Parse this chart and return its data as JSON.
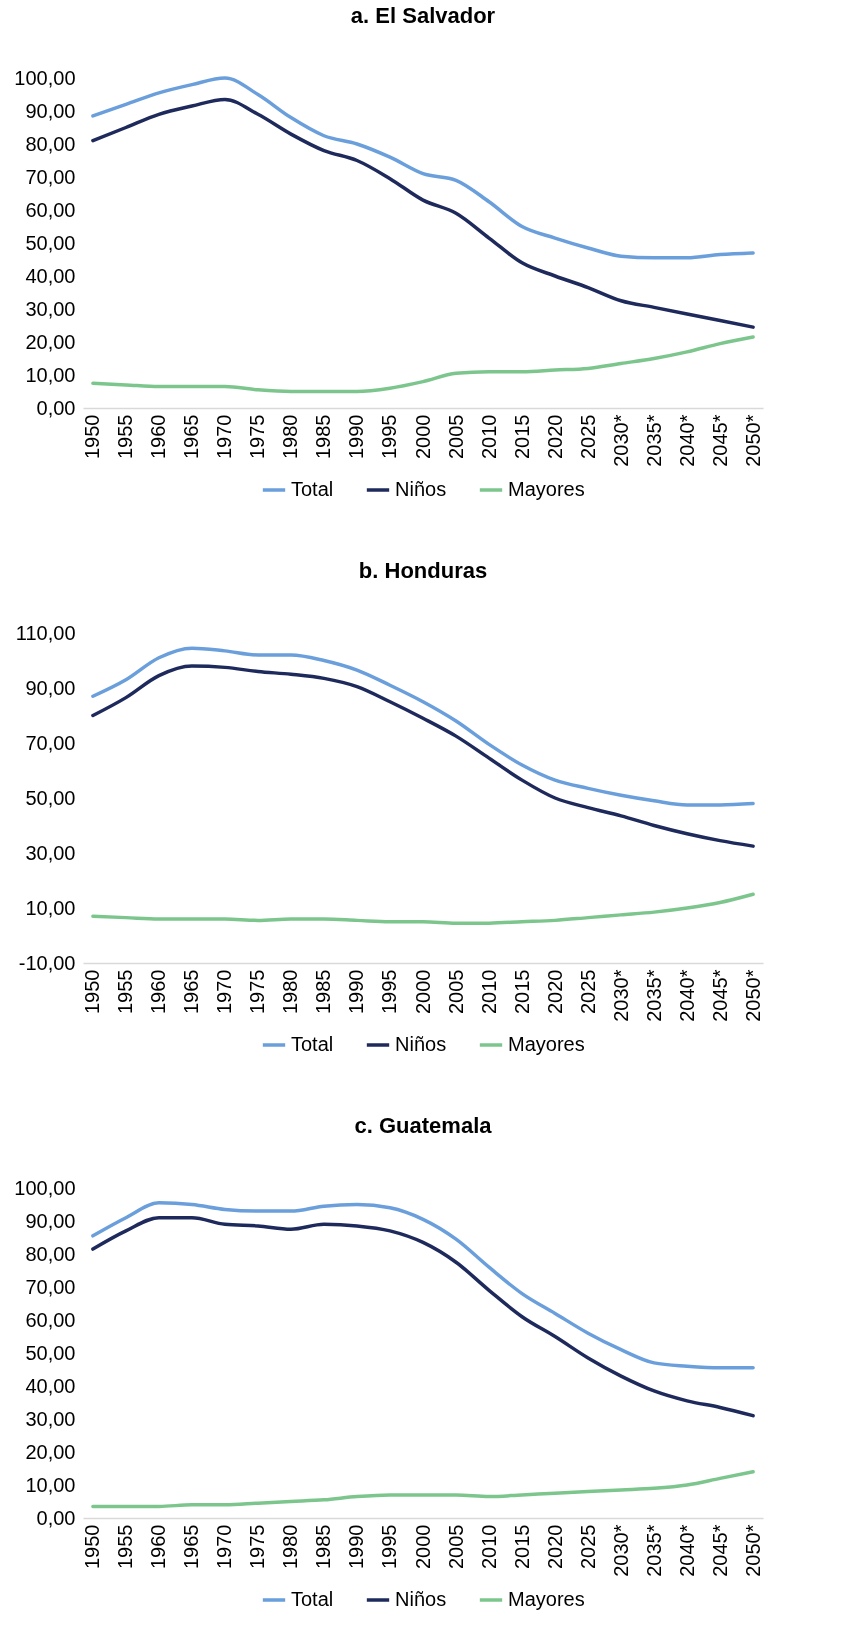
{
  "chart_data": [
    {
      "type": "line",
      "title": "a. El Salvador",
      "categories": [
        "1950",
        "1955",
        "1960",
        "1965",
        "1970",
        "1975",
        "1980",
        "1985",
        "1990",
        "1995",
        "2000",
        "2005",
        "2010",
        "2015",
        "2020",
        "2025",
        "2030*",
        "2035*",
        "2040*",
        "2045*",
        "2050*"
      ],
      "series": [
        {
          "name": "Total",
          "color": "#6a9fdc",
          "values": [
            88.5,
            92,
            95.5,
            98,
            100,
            95,
            88,
            82.5,
            80,
            76,
            71,
            69,
            62.5,
            55,
            51.5,
            48.5,
            46,
            45.5,
            45.5,
            46.5,
            47
          ]
        },
        {
          "name": "Niños",
          "color": "#1f2a5c",
          "values": [
            81,
            85,
            89,
            91.5,
            93.5,
            89,
            83,
            78,
            75,
            69.5,
            63,
            59,
            51.5,
            44,
            40,
            36.5,
            32.5,
            30.5,
            28.5,
            26.5,
            24.5
          ]
        },
        {
          "name": "Mayores",
          "color": "#7cc68d",
          "values": [
            7.5,
            7,
            6.5,
            6.5,
            6.5,
            5.5,
            5,
            5,
            5,
            6,
            8,
            10.5,
            11,
            11,
            11.5,
            12,
            13.5,
            15,
            17,
            19.5,
            21.5
          ]
        }
      ],
      "ylim": [
        0,
        100
      ],
      "yticks": [
        {
          "value": 0,
          "label": "0,00"
        },
        {
          "value": 10,
          "label": "10,00"
        },
        {
          "value": 20,
          "label": "20,00"
        },
        {
          "value": 30,
          "label": "30,00"
        },
        {
          "value": 40,
          "label": "40,00"
        },
        {
          "value": 50,
          "label": "50,00"
        },
        {
          "value": 60,
          "label": "60,00"
        },
        {
          "value": 70,
          "label": "70,00"
        },
        {
          "value": 80,
          "label": "80,00"
        },
        {
          "value": 90,
          "label": "90,00"
        },
        {
          "value": 100,
          "label": "100,00"
        }
      ],
      "grid": false,
      "legend": "bottom"
    },
    {
      "type": "line",
      "title": "b. Honduras",
      "categories": [
        "1950",
        "1955",
        "1960",
        "1965",
        "1970",
        "1975",
        "1980",
        "1985",
        "1990",
        "1995",
        "2000",
        "2005",
        "2010",
        "2015",
        "2020",
        "2025",
        "2030*",
        "2035*",
        "2040*",
        "2045*",
        "2050*"
      ],
      "series": [
        {
          "name": "Total",
          "color": "#6a9fdc",
          "values": [
            87,
            93,
            101,
            104.5,
            103.5,
            102,
            102,
            100,
            96.5,
            91,
            85,
            78,
            69.5,
            62,
            56.5,
            53.5,
            51,
            49,
            47.5,
            47.5,
            48
          ]
        },
        {
          "name": "Niños",
          "color": "#1f2a5c",
          "values": [
            80,
            86.5,
            94.5,
            98,
            97.5,
            96,
            95,
            93.5,
            90.5,
            85,
            79,
            72.5,
            64.5,
            56.5,
            50,
            46.5,
            43.5,
            40,
            37,
            34.5,
            32.5
          ]
        },
        {
          "name": "Mayores",
          "color": "#7cc68d",
          "values": [
            7,
            6.5,
            6,
            6,
            6,
            5.5,
            6,
            6,
            5.5,
            5,
            5,
            4.5,
            4.5,
            5,
            5.5,
            6.5,
            7.5,
            8.5,
            10,
            12,
            15
          ]
        }
      ],
      "ylim": [
        -10,
        110
      ],
      "yticks": [
        {
          "value": -10,
          "label": "-10,00"
        },
        {
          "value": 10,
          "label": "10,00"
        },
        {
          "value": 30,
          "label": "30,00"
        },
        {
          "value": 50,
          "label": "50,00"
        },
        {
          "value": 70,
          "label": "70,00"
        },
        {
          "value": 90,
          "label": "90,00"
        },
        {
          "value": 110,
          "label": "110,00"
        }
      ],
      "grid": false,
      "legend": "bottom"
    },
    {
      "type": "line",
      "title": "c. Guatemala",
      "categories": [
        "1950",
        "1955",
        "1960",
        "1965",
        "1970",
        "1975",
        "1980",
        "1985",
        "1990",
        "1995",
        "2000",
        "2005",
        "2010",
        "2015",
        "2020",
        "2025",
        "2030*",
        "2035*",
        "2040*",
        "2045*",
        "2050*"
      ],
      "series": [
        {
          "name": "Total",
          "color": "#6a9fdc",
          "values": [
            85.5,
            91,
            95.5,
            95,
            93.5,
            93,
            93,
            94.5,
            95,
            94,
            90.5,
            84.5,
            76,
            68,
            62,
            56,
            51,
            47,
            46,
            45.5,
            45.5
          ]
        },
        {
          "name": "Niños",
          "color": "#1f2a5c",
          "values": [
            81.5,
            87,
            91,
            91,
            89,
            88.5,
            87.5,
            89,
            88.5,
            87,
            83.5,
            77.5,
            69,
            61,
            55,
            48.5,
            43,
            38.5,
            35.5,
            33.5,
            31
          ]
        },
        {
          "name": "Mayores",
          "color": "#7cc68d",
          "values": [
            3.5,
            3.5,
            3.5,
            4,
            4,
            4.5,
            5,
            5.5,
            6.5,
            7,
            7,
            7,
            6.5,
            7,
            7.5,
            8,
            8.5,
            9,
            10,
            12,
            14
          ]
        }
      ],
      "ylim": [
        0,
        100
      ],
      "yticks": [
        {
          "value": 0,
          "label": "0,00"
        },
        {
          "value": 10,
          "label": "10,00"
        },
        {
          "value": 20,
          "label": "20,00"
        },
        {
          "value": 30,
          "label": "30,00"
        },
        {
          "value": 40,
          "label": "40,00"
        },
        {
          "value": 50,
          "label": "50,00"
        },
        {
          "value": 60,
          "label": "60,00"
        },
        {
          "value": 70,
          "label": "70,00"
        },
        {
          "value": 80,
          "label": "80,00"
        },
        {
          "value": 90,
          "label": "90,00"
        },
        {
          "value": 100,
          "label": "100,00"
        }
      ],
      "grid": false,
      "legend": "bottom"
    }
  ]
}
